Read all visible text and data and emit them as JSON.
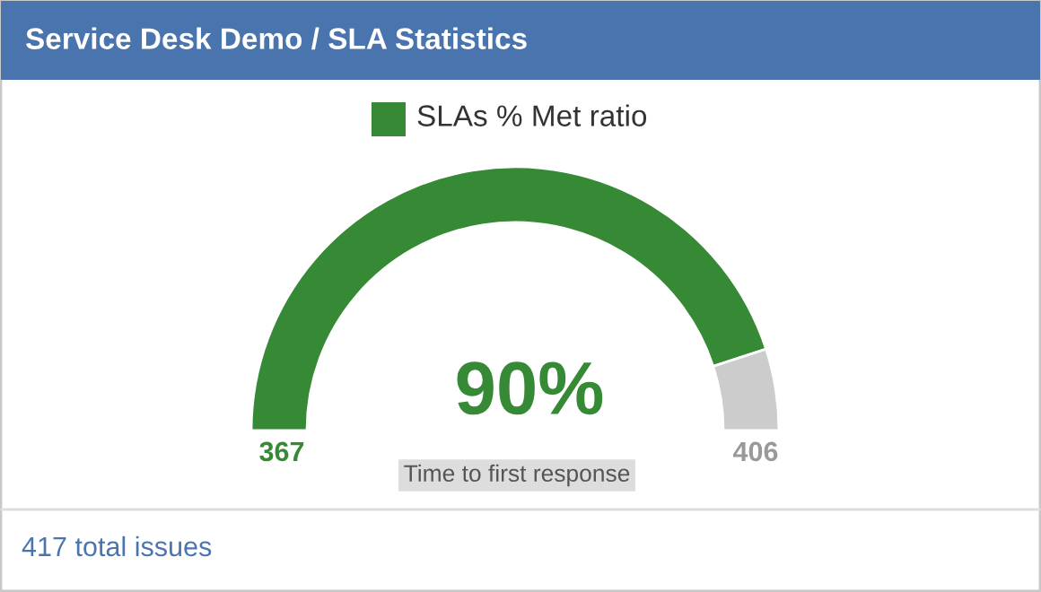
{
  "chart_data": {
    "type": "donut",
    "title": "Service Desk Demo / SLA Statistics",
    "categories": [
      "SLAs % Met ratio",
      null
    ],
    "values": [
      90,
      10
    ],
    "colors": [
      "#368a35",
      "#cccccc"
    ],
    "value_labels": [
      "90%",
      null
    ],
    "legend": "top",
    "annotations": [
      "367",
      "406",
      "Time to first response",
      "417 total issues"
    ]
  }
}
